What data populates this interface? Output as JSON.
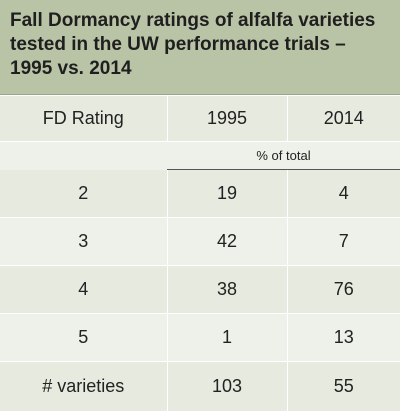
{
  "chart_data": {
    "type": "table",
    "title": "Fall Dormancy ratings of alfalfa varieties tested in the UW performance trials – 1995 vs. 2014",
    "columns": [
      "FD Rating",
      "1995",
      "2014"
    ],
    "unit_label": "% of total",
    "rows": [
      {
        "rating": "2",
        "y1995": "19",
        "y2014": "4"
      },
      {
        "rating": "3",
        "y1995": "42",
        "y2014": "7"
      },
      {
        "rating": "4",
        "y1995": "38",
        "y2014": "76"
      },
      {
        "rating": "5",
        "y1995": "1",
        "y2014": "13"
      }
    ],
    "totals": {
      "label": "# varieties",
      "y1995": "103",
      "y2014": "55"
    },
    "colors": {
      "title_band": "#b9c4a6",
      "row_dark": "#e6eadf",
      "row_light": "#eef1e9"
    }
  }
}
